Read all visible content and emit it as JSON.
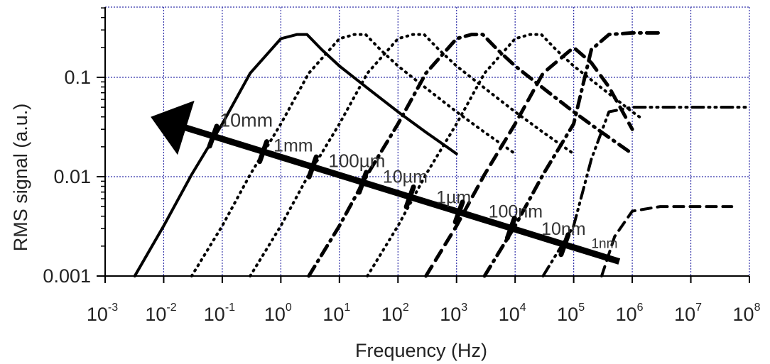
{
  "chart_data": {
    "type": "line",
    "title": "",
    "xlabel": "Frequency (Hz)",
    "ylabel": "RMS signal (a.u.)",
    "x_scale": "log",
    "y_scale": "log",
    "xlim": [
      0.001,
      100000000
    ],
    "ylim": [
      0.001,
      0.5
    ],
    "grid": true,
    "grid_color": "#3333aa",
    "line_color": "#000000",
    "x_ticks": [
      {
        "base": "10",
        "exp": "-3"
      },
      {
        "base": "10",
        "exp": "-2"
      },
      {
        "base": "10",
        "exp": "-1"
      },
      {
        "base": "10",
        "exp": "0"
      },
      {
        "base": "10",
        "exp": "1"
      },
      {
        "base": "10",
        "exp": "2"
      },
      {
        "base": "10",
        "exp": "3"
      },
      {
        "base": "10",
        "exp": "4"
      },
      {
        "base": "10",
        "exp": "5"
      },
      {
        "base": "10",
        "exp": "6"
      },
      {
        "base": "10",
        "exp": "7"
      },
      {
        "base": "10",
        "exp": "8"
      }
    ],
    "y_ticks": [
      "0.001",
      "0.01",
      "0.1"
    ],
    "series": [
      {
        "style": "solid",
        "x": [
          0.0032,
          0.01,
          0.03,
          0.1,
          0.3,
          1.0,
          1.9,
          2.8,
          5,
          10,
          30,
          100,
          300,
          1000
        ],
        "y": [
          0.001,
          0.0032,
          0.0105,
          0.034,
          0.11,
          0.245,
          0.27,
          0.27,
          0.19,
          0.13,
          0.078,
          0.045,
          0.028,
          0.017
        ]
      },
      {
        "style": "dotted",
        "x": [
          0.03,
          0.1,
          0.3,
          1,
          3,
          10,
          18,
          28,
          50,
          100,
          300,
          1000,
          3000,
          10000
        ],
        "y": [
          0.001,
          0.0032,
          0.0105,
          0.034,
          0.11,
          0.245,
          0.27,
          0.27,
          0.19,
          0.13,
          0.078,
          0.045,
          0.028,
          0.017
        ]
      },
      {
        "style": "dotted",
        "x": [
          0.3,
          1,
          3,
          10,
          30,
          100,
          180,
          280,
          500,
          1000,
          3000,
          10000,
          30000,
          100000
        ],
        "y": [
          0.001,
          0.0032,
          0.0105,
          0.034,
          0.11,
          0.245,
          0.27,
          0.27,
          0.19,
          0.13,
          0.078,
          0.045,
          0.028,
          0.017
        ]
      },
      {
        "style": "dashdot",
        "x": [
          3,
          10,
          30,
          100,
          300,
          1000,
          1800,
          2800,
          5000,
          10000,
          30000,
          100000,
          300000,
          1000000
        ],
        "y": [
          0.001,
          0.0032,
          0.0105,
          0.034,
          0.11,
          0.245,
          0.27,
          0.27,
          0.19,
          0.13,
          0.078,
          0.045,
          0.028,
          0.017
        ]
      },
      {
        "style": "dotted",
        "x": [
          30,
          100,
          300,
          1000,
          3000,
          10000,
          18000,
          28000,
          50000,
          100000,
          300000,
          1000000,
          1500000
        ],
        "y": [
          0.001,
          0.0032,
          0.0105,
          0.034,
          0.11,
          0.245,
          0.27,
          0.27,
          0.19,
          0.13,
          0.078,
          0.045,
          0.038
        ]
      },
      {
        "style": "longdash",
        "x": [
          300,
          1000,
          3000,
          10000,
          30000,
          100000,
          200000,
          400000,
          1000000
        ],
        "y": [
          0.001,
          0.0032,
          0.0105,
          0.034,
          0.11,
          0.2,
          0.14,
          0.08,
          0.03
        ]
      },
      {
        "style": "dashdot",
        "x": [
          3000,
          10000,
          30000,
          100000,
          200000,
          400000,
          1000000,
          2800000
        ],
        "y": [
          0.001,
          0.0032,
          0.0105,
          0.034,
          0.19,
          0.27,
          0.28,
          0.28
        ]
      },
      {
        "style": "dashdotdot",
        "x": [
          30000,
          100000,
          200000,
          400000,
          1000000,
          10000000,
          100000000
        ],
        "y": [
          0.001,
          0.0032,
          0.015,
          0.045,
          0.05,
          0.05,
          0.05
        ]
      },
      {
        "style": "dashed",
        "x": [
          300000,
          500000,
          1000000,
          3000000,
          10000000,
          50000000
        ],
        "y": [
          0.001,
          0.0025,
          0.0045,
          0.005,
          0.005,
          0.005
        ]
      }
    ],
    "arrow": {
      "from": [
        600000,
        0.0014
      ],
      "to": [
        0.006,
        0.04
      ]
    },
    "size_labels": [
      {
        "text": "10mm",
        "x": 0.09,
        "y": 0.032,
        "size": 27
      },
      {
        "text": "1mm",
        "x": 0.75,
        "y": 0.018,
        "size": 25
      },
      {
        "text": "100µm",
        "x": 6.5,
        "y": 0.0125,
        "size": 26
      },
      {
        "text": "10µm",
        "x": 55,
        "y": 0.0087,
        "size": 25
      },
      {
        "text": "1µm",
        "x": 450,
        "y": 0.0054,
        "size": 25
      },
      {
        "text": "100nm",
        "x": 3500,
        "y": 0.0039,
        "size": 25
      },
      {
        "text": "10nm",
        "x": 28000,
        "y": 0.0026,
        "size": 25
      },
      {
        "text": "1nm",
        "x": 200000,
        "y": 0.00192,
        "size": 19
      }
    ]
  }
}
